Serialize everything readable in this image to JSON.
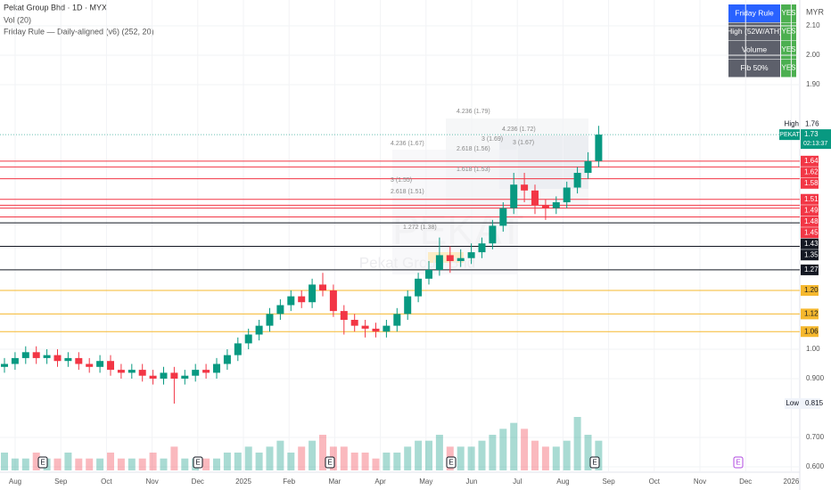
{
  "chart_data": {
    "type": "candlestick",
    "title": "Pekat Group Bhd · 1D · MYX",
    "indicators": [
      "Vol (20)",
      "Friday Rule — Daily-aligned (v6) (252, 20)"
    ],
    "watermark": [
      "PEKAT",
      "Pekat Group Bhd"
    ],
    "currency": "MYR",
    "categories": [
      "Aug",
      "Sep",
      "Oct",
      "Nov",
      "Dec",
      "2025",
      "Feb",
      "Mar",
      "Apr",
      "May",
      "Jun",
      "Jul",
      "Aug",
      "Sep",
      "Oct",
      "Nov",
      "Dec",
      "2026"
    ],
    "open": [
      0.94,
      0.95,
      0.97,
      0.99,
      0.97,
      0.98,
      0.96,
      0.97,
      0.95,
      0.94,
      0.96,
      0.93,
      0.92,
      0.93,
      0.91,
      0.9,
      0.92,
      0.9,
      0.91,
      0.93,
      0.92,
      0.95,
      0.98,
      1.02,
      1.05,
      1.08,
      1.12,
      1.15,
      1.18,
      1.16,
      1.22,
      1.2,
      1.13,
      1.1,
      1.08,
      1.07,
      1.06,
      1.08,
      1.12,
      1.18,
      1.24,
      1.27,
      1.32,
      1.3,
      1.31,
      1.33,
      1.36,
      1.42,
      1.48,
      1.56,
      1.54,
      1.49,
      1.48,
      1.5,
      1.55,
      1.6,
      1.64
    ],
    "high": [
      0.97,
      0.99,
      1.01,
      1.01,
      1.0,
      1.0,
      0.99,
      0.99,
      0.97,
      0.98,
      0.98,
      0.95,
      0.95,
      0.95,
      0.93,
      0.94,
      0.94,
      0.93,
      0.95,
      0.95,
      0.97,
      1.0,
      1.04,
      1.07,
      1.1,
      1.14,
      1.17,
      1.2,
      1.2,
      1.24,
      1.26,
      1.22,
      1.15,
      1.12,
      1.1,
      1.09,
      1.1,
      1.14,
      1.2,
      1.26,
      1.3,
      1.38,
      1.35,
      1.34,
      1.36,
      1.38,
      1.44,
      1.5,
      1.6,
      1.6,
      1.56,
      1.51,
      1.52,
      1.57,
      1.62,
      1.67,
      1.76
    ],
    "low": [
      0.92,
      0.93,
      0.95,
      0.95,
      0.95,
      0.94,
      0.94,
      0.93,
      0.92,
      0.92,
      0.91,
      0.9,
      0.9,
      0.89,
      0.88,
      0.88,
      0.815,
      0.88,
      0.89,
      0.9,
      0.9,
      0.93,
      0.96,
      1.0,
      1.03,
      1.06,
      1.1,
      1.13,
      1.14,
      1.14,
      1.18,
      1.11,
      1.05,
      1.06,
      1.04,
      1.04,
      1.04,
      1.06,
      1.1,
      1.16,
      1.22,
      1.25,
      1.26,
      1.28,
      1.29,
      1.31,
      1.34,
      1.4,
      1.46,
      1.5,
      1.46,
      1.44,
      1.46,
      1.48,
      1.53,
      1.58,
      1.62
    ],
    "close": [
      0.95,
      0.97,
      0.99,
      0.97,
      0.98,
      0.96,
      0.97,
      0.95,
      0.94,
      0.96,
      0.93,
      0.92,
      0.93,
      0.91,
      0.9,
      0.92,
      0.9,
      0.91,
      0.93,
      0.92,
      0.95,
      0.98,
      1.02,
      1.05,
      1.08,
      1.12,
      1.15,
      1.18,
      1.16,
      1.22,
      1.2,
      1.13,
      1.1,
      1.08,
      1.07,
      1.06,
      1.08,
      1.12,
      1.18,
      1.24,
      1.27,
      1.32,
      1.3,
      1.31,
      1.33,
      1.36,
      1.42,
      1.48,
      1.56,
      1.54,
      1.49,
      1.48,
      1.5,
      1.55,
      1.6,
      1.64,
      1.73
    ],
    "volume": [
      3,
      2,
      2,
      3,
      2,
      2,
      3,
      2,
      2,
      2,
      3,
      2,
      2,
      2,
      3,
      2,
      4,
      2,
      2,
      2,
      2,
      3,
      3,
      4,
      3,
      4,
      5,
      3,
      4,
      5,
      6,
      4,
      4,
      3,
      3,
      2,
      3,
      3,
      4,
      5,
      5,
      6,
      4,
      4,
      4,
      5,
      6,
      7,
      8,
      7,
      5,
      4,
      4,
      5,
      9,
      6,
      5
    ],
    "up_color": "#089981",
    "down_color": "#f23645",
    "ylim": [
      0.5515,
      2.188
    ],
    "yticks": [
      {
        "value": 2.1,
        "label": "2.10"
      },
      {
        "value": 2.0,
        "label": "2.00"
      },
      {
        "value": 1.9,
        "label": "1.90"
      },
      {
        "value": 1.0,
        "label": "1.00"
      },
      {
        "value": 0.9,
        "label": "0.900"
      },
      {
        "value": 0.7,
        "label": "0.700"
      },
      {
        "value": 0.6,
        "label": "0.600"
      }
    ],
    "grid": true,
    "levels": {
      "values": [
        1.64,
        1.62,
        1.58,
        1.51,
        1.49,
        1.48,
        1.45,
        1.43,
        1.35,
        1.27,
        1.2,
        1.12,
        1.06
      ],
      "value_labels": [
        "1.64",
        "1.62",
        "1.58",
        "1.51",
        "1.49",
        "1.48",
        "1.45",
        "1.43",
        "1.35",
        "1.27",
        "1.20",
        "1.12",
        "1.06"
      ],
      "colors": [
        "#f23645",
        "#f23645",
        "#f23645",
        "#f23645",
        "#f23645",
        "#f23645",
        "#f23645",
        "#131722",
        "#131722",
        "#131722",
        "#f5b82e",
        "#f5b82e",
        "#f5b82e"
      ]
    },
    "last_price": {
      "symbol": "PEKAT",
      "value": 1.73,
      "countdown": "02:13:37",
      "color": "#089981"
    },
    "high_marker": {
      "label": "High",
      "value": 1.76
    },
    "low_marker": {
      "label": "Low",
      "value": 0.815
    },
    "annotations": [
      "4.236 (1.79)",
      "4.236 (1.72)",
      "3 (1.69)",
      "4.236 (1.67)",
      "3 (1.67)",
      "2.618 (1.56)",
      "1.618 (1.53)",
      "3 (1.55)",
      "2.618 (1.51)",
      "1.272 (1.38)"
    ],
    "events": [
      "E",
      "E",
      "E",
      "E",
      "E",
      "E"
    ],
    "status_table": {
      "rows": [
        [
          "Friday Rule",
          "YES"
        ],
        [
          "High (52W/ATH)",
          "YES"
        ],
        [
          "Volume",
          "YES"
        ],
        [
          "Fib 50%",
          "YES"
        ]
      ]
    }
  }
}
